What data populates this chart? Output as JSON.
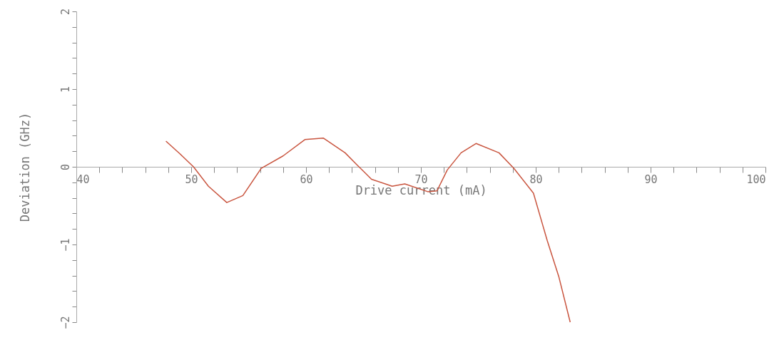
{
  "chart_data": {
    "type": "line",
    "xlabel": "Drive current (mA)",
    "ylabel": "Deviation (GHz)",
    "xlim": [
      40,
      100
    ],
    "ylim": [
      -2,
      2
    ],
    "xticks": [
      40,
      {
        "value": 42,
        "label": null
      },
      {
        "value": 44,
        "label": null
      },
      {
        "value": 46,
        "label": null
      },
      {
        "value": 48,
        "label": null
      },
      50,
      {
        "value": 52,
        "label": null
      },
      {
        "value": 54,
        "label": null
      },
      {
        "value": 56,
        "label": null
      },
      {
        "value": 58,
        "label": null
      },
      60,
      {
        "value": 62,
        "label": null
      },
      {
        "value": 64,
        "label": null
      },
      {
        "value": 66,
        "label": null
      },
      {
        "value": 68,
        "label": null
      },
      70,
      {
        "value": 72,
        "label": null
      },
      {
        "value": 74,
        "label": null
      },
      {
        "value": 76,
        "label": null
      },
      {
        "value": 78,
        "label": null
      },
      80,
      {
        "value": 82,
        "label": null
      },
      {
        "value": 84,
        "label": null
      },
      {
        "value": 86,
        "label": null
      },
      {
        "value": 88,
        "label": null
      },
      90,
      {
        "value": 92,
        "label": null
      },
      {
        "value": 94,
        "label": null
      },
      {
        "value": 96,
        "label": null
      },
      {
        "value": 98,
        "label": null
      },
      100
    ],
    "yticks": [
      -2,
      {
        "value": -1.8,
        "label": null
      },
      {
        "value": -1.6,
        "label": null
      },
      {
        "value": -1.4,
        "label": null
      },
      {
        "value": -1.2,
        "label": null
      },
      -1,
      {
        "value": -0.8,
        "label": null
      },
      {
        "value": -0.6,
        "label": null
      },
      {
        "value": -0.4,
        "label": null
      },
      {
        "value": -0.2,
        "label": null
      },
      0,
      {
        "value": 0.2,
        "label": null
      },
      {
        "value": 0.4,
        "label": null
      },
      {
        "value": 0.6,
        "label": null
      },
      {
        "value": 0.8,
        "label": null
      },
      1,
      {
        "value": 1.2,
        "label": null
      },
      {
        "value": 1.4,
        "label": null
      },
      {
        "value": 1.6,
        "label": null
      },
      {
        "value": 1.8,
        "label": null
      },
      2
    ],
    "series": [
      {
        "color": "#c9553f",
        "x": [
          47.8,
          49,
          50.2,
          51.5,
          53.1,
          54.5,
          56.1,
          58.0,
          59.9,
          61.5,
          63.4,
          64.4,
          65.7,
          67.5,
          68.6,
          70.6,
          71.4,
          72.3,
          73.5,
          74.8,
          76.8,
          78.1,
          79.8,
          81.0,
          82.0,
          83.0
        ],
        "values": [
          0.33,
          0.17,
          0.0,
          -0.25,
          -0.46,
          -0.37,
          -0.02,
          0.14,
          0.35,
          0.37,
          0.18,
          0.03,
          -0.16,
          -0.25,
          -0.22,
          -0.32,
          -0.31,
          -0.04,
          0.18,
          0.3,
          0.18,
          -0.02,
          -0.34,
          -0.95,
          -1.41,
          -2.0
        ]
      }
    ]
  }
}
